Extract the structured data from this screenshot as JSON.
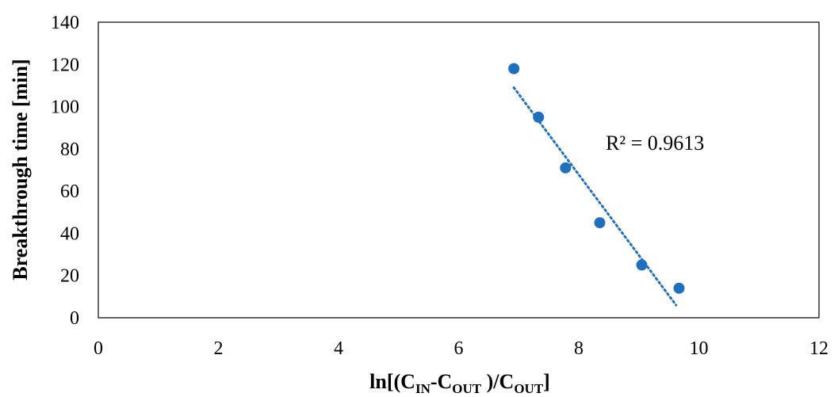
{
  "chart_data": {
    "type": "scatter",
    "series": [
      {
        "x": [
          6.92,
          7.33,
          7.78,
          8.35,
          9.05,
          9.67
        ],
        "y": [
          118,
          95,
          71,
          45,
          25,
          14
        ],
        "color": "#1f6fbf"
      }
    ],
    "trendline": {
      "type": "linear",
      "x_range": [
        6.92,
        9.62
      ],
      "y_range": [
        109,
        6
      ],
      "color": "#1f6fbf",
      "style": "dotted"
    },
    "annotation": "R² = 0.9613",
    "xlabel": {
      "prefix": "ln[(C",
      "sub1": "IN",
      "mid1": "-C",
      "sub2": "OUT",
      "mid2": " )/C",
      "sub3": "OUT",
      "suffix": "]"
    },
    "ylabel": "Breakthrough time [min]",
    "xlim": [
      0,
      12
    ],
    "ylim": [
      0,
      140
    ],
    "xticks": [
      0,
      2,
      4,
      6,
      8,
      10,
      12
    ],
    "yticks": [
      0,
      20,
      40,
      60,
      80,
      100,
      120,
      140
    ],
    "grid": false,
    "legend": "none"
  }
}
